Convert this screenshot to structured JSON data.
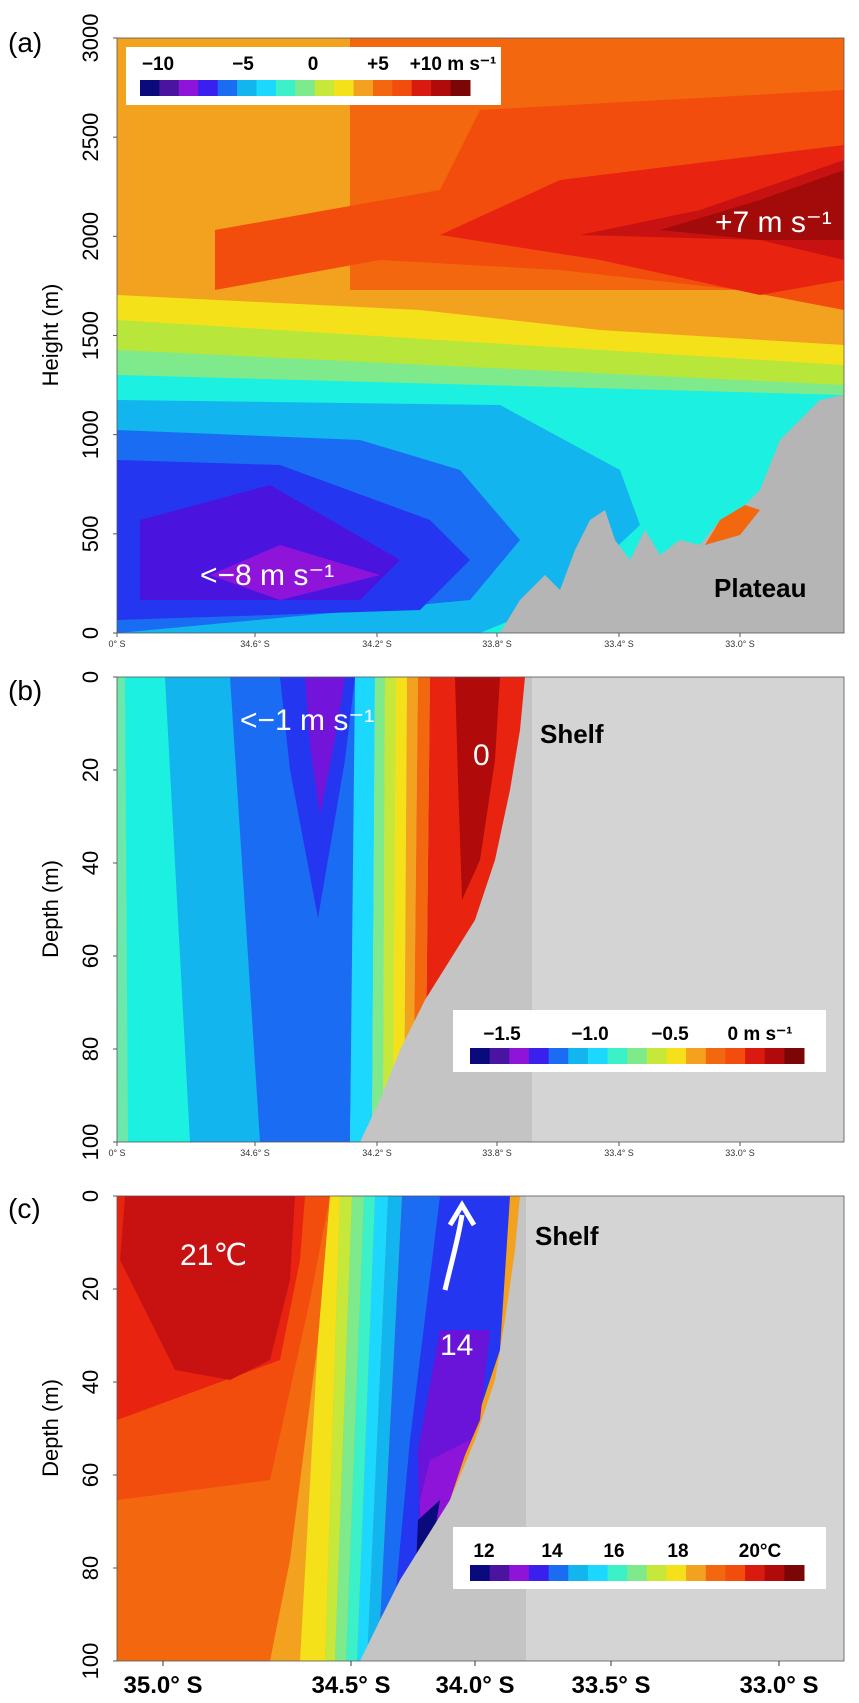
{
  "chart_data": [
    {
      "panel": "(a)",
      "type": "heatmap",
      "ylabel": "Height  (m)",
      "yticks": [
        "0",
        "500",
        "1000",
        "1500",
        "2000",
        "2500",
        "3000"
      ],
      "ylim": [
        0,
        3000
      ],
      "xticks": [
        "0° S",
        "34.6° S",
        "34.2° S",
        "33.8° S",
        "33.4° S",
        "33.0° S"
      ],
      "xlim": [
        35.0,
        32.7
      ],
      "x": [
        35.0,
        34.6,
        34.2,
        33.8,
        33.4,
        33.0,
        32.7
      ],
      "y": [
        0,
        500,
        1000,
        1500,
        2000,
        2500,
        3000
      ],
      "values": [
        [
          -4,
          -5,
          -3,
          0,
          0,
          0,
          0
        ],
        [
          -7,
          -8,
          -6,
          -1,
          0,
          1,
          2
        ],
        [
          -4,
          -6,
          -4,
          -2,
          -1,
          0,
          1
        ],
        [
          1,
          1,
          1,
          1,
          0,
          1,
          2
        ],
        [
          5,
          5,
          6,
          6,
          6,
          7,
          6
        ],
        [
          5,
          5,
          6,
          6,
          6,
          6,
          6
        ],
        [
          4,
          4,
          4,
          5,
          5,
          5,
          6
        ]
      ],
      "colorbar": {
        "ticks": [
          "−10",
          "−5",
          "0",
          "+5",
          "+10 m s⁻¹"
        ],
        "range": [
          -10,
          10
        ]
      },
      "annotations": [
        "+7 m s⁻¹",
        "<−8 m s⁻¹",
        "Plateau"
      ]
    },
    {
      "panel": "(b)",
      "type": "heatmap",
      "ylabel": "Depth (m)",
      "yticks": [
        "0",
        "20",
        "40",
        "60",
        "80",
        "100"
      ],
      "ylim": [
        100,
        0
      ],
      "xticks": [
        "0° S",
        "34.6° S",
        "34.2° S",
        "33.8° S",
        "33.4° S",
        "33.0° S"
      ],
      "xlim": [
        35.0,
        32.7
      ],
      "colorbar": {
        "ticks": [
          "−1.5",
          "−1.0",
          "−0.5",
          "0 m s⁻¹"
        ],
        "range": [
          -1.5,
          0.2
        ]
      },
      "annotations": [
        "<−1 m s⁻¹",
        "0",
        "Shelf"
      ]
    },
    {
      "panel": "(c)",
      "type": "heatmap",
      "ylabel": "Depth (m)",
      "yticks": [
        "0",
        "20",
        "40",
        "60",
        "80",
        "100"
      ],
      "ylim": [
        100,
        0
      ],
      "xticks": [
        "35.0° S",
        "34.5° S",
        "34.0° S",
        "33.5° S",
        "33.0° S"
      ],
      "xlim": [
        35.0,
        32.7
      ],
      "colorbar": {
        "ticks": [
          "12",
          "14",
          "16",
          "18",
          "20°C"
        ],
        "range": [
          11.5,
          21.5
        ]
      },
      "annotations": [
        "21℃",
        "14",
        "Shelf"
      ]
    }
  ],
  "panels": {
    "a": {
      "label": "(a)",
      "ylabel": "Height  (m)"
    },
    "b": {
      "label": "(b)",
      "ylabel": "Depth (m)"
    },
    "c": {
      "label": "(c)",
      "ylabel": "Depth (m)"
    }
  }
}
